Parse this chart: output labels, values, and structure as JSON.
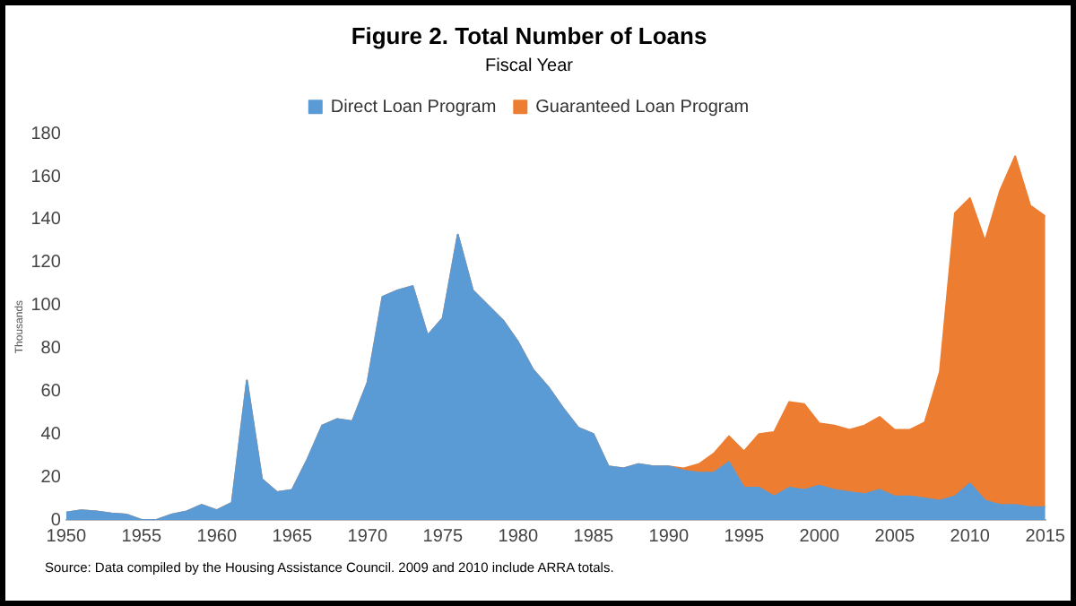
{
  "chart_data": {
    "type": "area",
    "title": "Figure 2. Total Number of Loans",
    "subtitle": "Fiscal Year",
    "ylabel": "Thousands",
    "stacked": true,
    "x": [
      1950,
      1951,
      1952,
      1953,
      1954,
      1955,
      1956,
      1957,
      1958,
      1959,
      1960,
      1961,
      1962,
      1963,
      1964,
      1965,
      1966,
      1967,
      1968,
      1969,
      1970,
      1971,
      1972,
      1973,
      1974,
      1975,
      1976,
      1977,
      1978,
      1979,
      1980,
      1981,
      1982,
      1983,
      1984,
      1985,
      1986,
      1987,
      1988,
      1989,
      1990,
      1991,
      1992,
      1993,
      1994,
      1995,
      1996,
      1997,
      1998,
      1999,
      2000,
      2001,
      2002,
      2003,
      2004,
      2005,
      2006,
      2007,
      2008,
      2009,
      2010,
      2011,
      2012,
      2013,
      2014,
      2015
    ],
    "series": [
      {
        "name": "Direct Loan Program",
        "color": "#5b9bd5",
        "values": [
          3.5,
          4.5,
          4,
          3,
          2.5,
          0,
          0,
          2.5,
          4,
          7,
          4.5,
          8,
          65,
          19,
          13,
          14,
          28,
          44,
          47,
          46,
          64,
          104,
          107,
          109,
          86,
          94,
          133,
          107,
          100,
          93,
          83,
          70,
          62,
          52,
          43,
          40,
          25,
          24,
          26,
          25,
          25,
          23,
          22,
          22,
          27,
          15,
          15,
          11,
          15,
          14,
          16,
          14,
          13,
          12,
          14,
          11,
          11,
          10,
          9,
          11,
          17,
          9,
          7,
          7,
          6,
          6
        ]
      },
      {
        "name": "Guaranteed Loan Program",
        "color": "#ed7d31",
        "values": [
          0,
          0,
          0,
          0,
          0,
          0,
          0,
          0,
          0,
          0,
          0,
          0,
          0,
          0,
          0,
          0,
          0,
          0,
          0,
          0,
          0,
          0,
          0,
          0,
          0,
          0,
          0,
          0,
          0,
          0,
          0,
          0,
          0,
          0,
          0,
          0,
          0,
          0,
          0,
          0,
          0,
          1,
          4,
          9,
          12,
          17,
          25,
          30,
          40,
          40,
          29,
          30,
          29,
          32,
          34,
          31,
          31,
          35.5,
          60,
          132,
          133,
          121,
          146.5,
          162.5,
          140.5,
          135.5
        ]
      }
    ],
    "xlim": [
      1950,
      2015
    ],
    "xticks": [
      1950,
      1955,
      1960,
      1965,
      1970,
      1975,
      1980,
      1985,
      1990,
      1995,
      2000,
      2005,
      2010,
      2015
    ],
    "ylim": [
      0,
      180
    ],
    "yticks": [
      0,
      20,
      40,
      60,
      80,
      100,
      120,
      140,
      160,
      180
    ],
    "grid": false,
    "legend": "top",
    "annotations": [
      "Source: Data compiled by the Housing Assistance Council. 2009 and 2010  include ARRA totals."
    ]
  }
}
